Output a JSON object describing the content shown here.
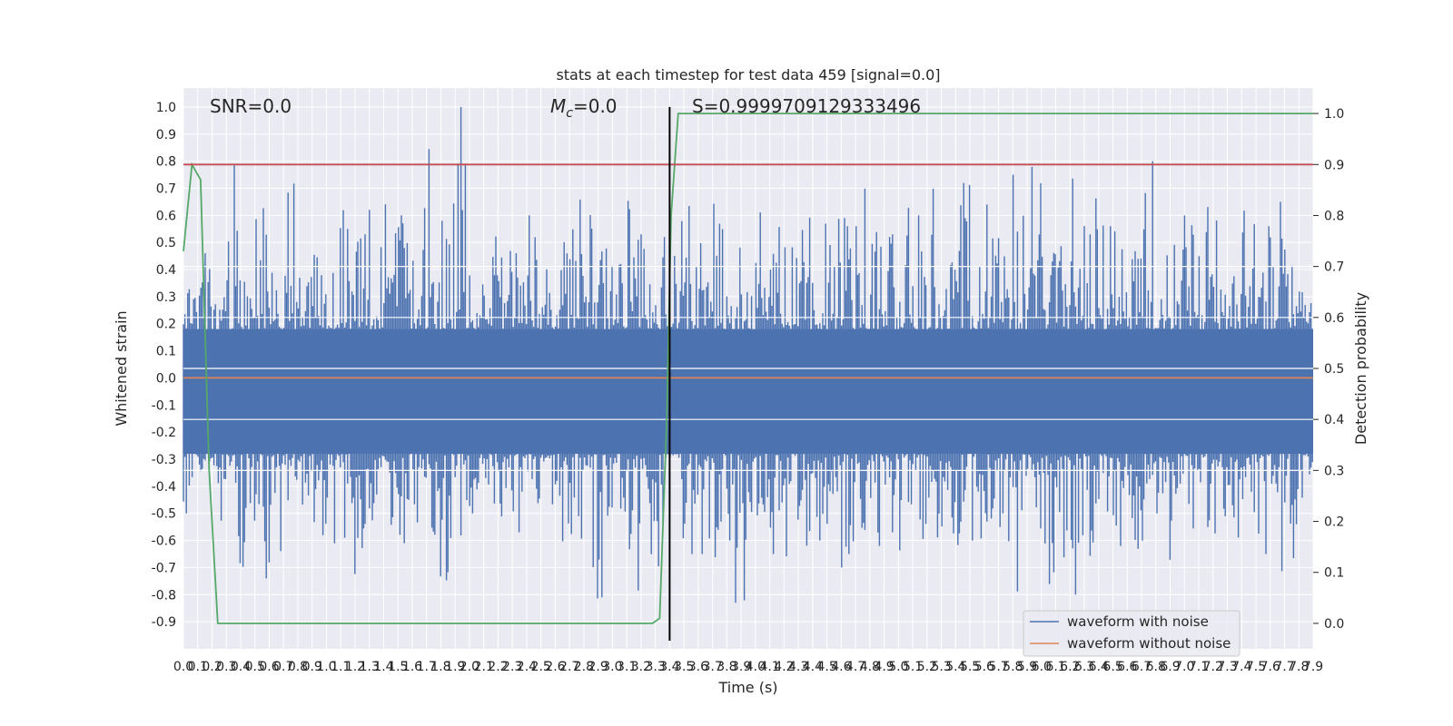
{
  "chart_data": {
    "type": "line",
    "title": "stats at each timestep for test data 459 [signal=0.0]",
    "xlabel": "Time (s)",
    "ylabel_left": "Whitened strain",
    "ylabel_right": "Detection probability",
    "annotations": {
      "snr_label": "SNR=0.0",
      "mc_symbol": "M",
      "mc_sub": "c",
      "mc_value": "=0.0",
      "s_label": "S=0.9999709129333496"
    },
    "xlim": [
      0.0,
      7.9
    ],
    "ylim_left": [
      -1.0,
      1.07
    ],
    "ylim_right": [
      -0.05,
      1.05
    ],
    "x_ticks": [
      0.0,
      0.1,
      0.2,
      0.3,
      0.4,
      0.5,
      0.6,
      0.7,
      0.8,
      0.9,
      1.0,
      1.1,
      1.2,
      1.3,
      1.4,
      1.5,
      1.6,
      1.7,
      1.8,
      1.9,
      2.0,
      2.1,
      2.2,
      2.3,
      2.4,
      2.5,
      2.6,
      2.7,
      2.8,
      2.9,
      3.0,
      3.1,
      3.2,
      3.3,
      3.4,
      3.5,
      3.6,
      3.7,
      3.8,
      3.9,
      4.0,
      4.1,
      4.2,
      4.3,
      4.4,
      4.5,
      4.6,
      4.7,
      4.8,
      4.9,
      5.0,
      5.1,
      5.2,
      5.3,
      5.4,
      5.5,
      5.6,
      5.7,
      5.8,
      5.9,
      6.0,
      6.1,
      6.2,
      6.3,
      6.4,
      6.5,
      6.6,
      6.7,
      6.8,
      6.9,
      7.0,
      7.1,
      7.2,
      7.3,
      7.4,
      7.5,
      7.6,
      7.7,
      7.8,
      7.9
    ],
    "y_ticks_left": [
      1.0,
      0.9,
      0.8,
      0.7,
      0.6,
      0.5,
      0.4,
      0.3,
      0.2,
      0.1,
      0.0,
      -0.1,
      -0.2,
      -0.3,
      -0.4,
      -0.5,
      -0.6,
      -0.7,
      -0.8,
      -0.9
    ],
    "y_ticks_right": [
      1.0,
      0.9,
      0.8,
      0.7,
      0.6,
      0.5,
      0.4,
      0.3,
      0.2,
      0.1,
      0.0
    ],
    "grid": true,
    "legend_position": "bottom-right",
    "series": [
      {
        "name": "waveform with noise",
        "color": "#4c72b0",
        "axis": "left",
        "note": "dense noise",
        "envelope_max": [
          0.33,
          0.46,
          0.32,
          0.82,
          0.52,
          0.66,
          0.48,
          0.72,
          0.46,
          0.5,
          0.44,
          0.68,
          0.55,
          0.62,
          0.73,
          0.6,
          0.5,
          0.87,
          0.58,
          1.0,
          0.45,
          0.6,
          0.7,
          0.55,
          0.6,
          0.5,
          0.62,
          0.58,
          0.7,
          0.55,
          0.52,
          0.72,
          0.6,
          0.76,
          0.55,
          0.68,
          0.6,
          0.7,
          0.55,
          0.72,
          0.62,
          0.6,
          0.68,
          0.55,
          0.85,
          0.6,
          0.75,
          0.56,
          0.72,
          0.58,
          0.65,
          0.8,
          0.6,
          0.7,
          0.55,
          0.72,
          0.64,
          0.6,
          0.75,
          0.6,
          0.86,
          0.55,
          0.78,
          0.6,
          0.72,
          0.6,
          0.7,
          0.58,
          0.8,
          0.6,
          0.7,
          0.62,
          0.72,
          0.6,
          0.7,
          0.62,
          0.7,
          0.65,
          0.5,
          0.4
        ],
        "envelope_min": [
          -0.5,
          -0.67,
          -0.55,
          -0.65,
          -0.75,
          -0.74,
          -0.87,
          -0.5,
          -0.55,
          -0.6,
          -0.72,
          -0.6,
          -0.75,
          -0.55,
          -0.6,
          -0.65,
          -0.55,
          -0.8,
          -0.75,
          -0.6,
          -0.55,
          -0.6,
          -0.58,
          -0.6,
          -0.55,
          -0.6,
          -0.7,
          -0.6,
          -0.65,
          -0.87,
          -0.6,
          -0.65,
          -0.8,
          -0.75,
          -0.3,
          -0.6,
          -0.65,
          -0.82,
          -0.6,
          -0.83,
          -0.6,
          -0.65,
          -0.7,
          -0.6,
          -0.65,
          -0.6,
          -0.7,
          -0.65,
          -0.6,
          -0.62,
          -0.65,
          -0.6,
          -0.7,
          -0.6,
          -0.65,
          -0.6,
          -0.7,
          -0.6,
          -0.65,
          -0.79,
          -0.6,
          -0.82,
          -0.75,
          -0.8,
          -0.72,
          -0.81,
          -0.7,
          -0.65,
          -0.6,
          -0.72,
          -0.6,
          -0.65,
          -0.6,
          -0.7,
          -0.77,
          -0.6,
          -0.65,
          -0.76,
          -0.72,
          -0.5
        ]
      },
      {
        "name": "waveform without noise",
        "color": "#dd8452",
        "axis": "left",
        "x": [
          0.0,
          7.9
        ],
        "y": [
          0.0,
          0.0
        ]
      },
      {
        "color": "#55a868",
        "axis": "right",
        "x": [
          0.0,
          0.06,
          0.12,
          0.18,
          0.24,
          0.3,
          3.28,
          3.33,
          3.38,
          3.41,
          3.46,
          7.9
        ],
        "y": [
          0.73,
          0.9,
          0.87,
          0.3,
          0.0,
          0.0,
          0.0,
          0.01,
          0.4,
          0.8,
          1.0,
          1.0
        ]
      },
      {
        "color": "#c44e52",
        "axis": "right",
        "x": [
          0.0,
          7.9
        ],
        "y": [
          0.9,
          0.9
        ]
      },
      {
        "color": "#000000",
        "axis": "left",
        "x": [
          3.4,
          3.4
        ],
        "y": [
          -0.97,
          1.0
        ]
      }
    ]
  }
}
